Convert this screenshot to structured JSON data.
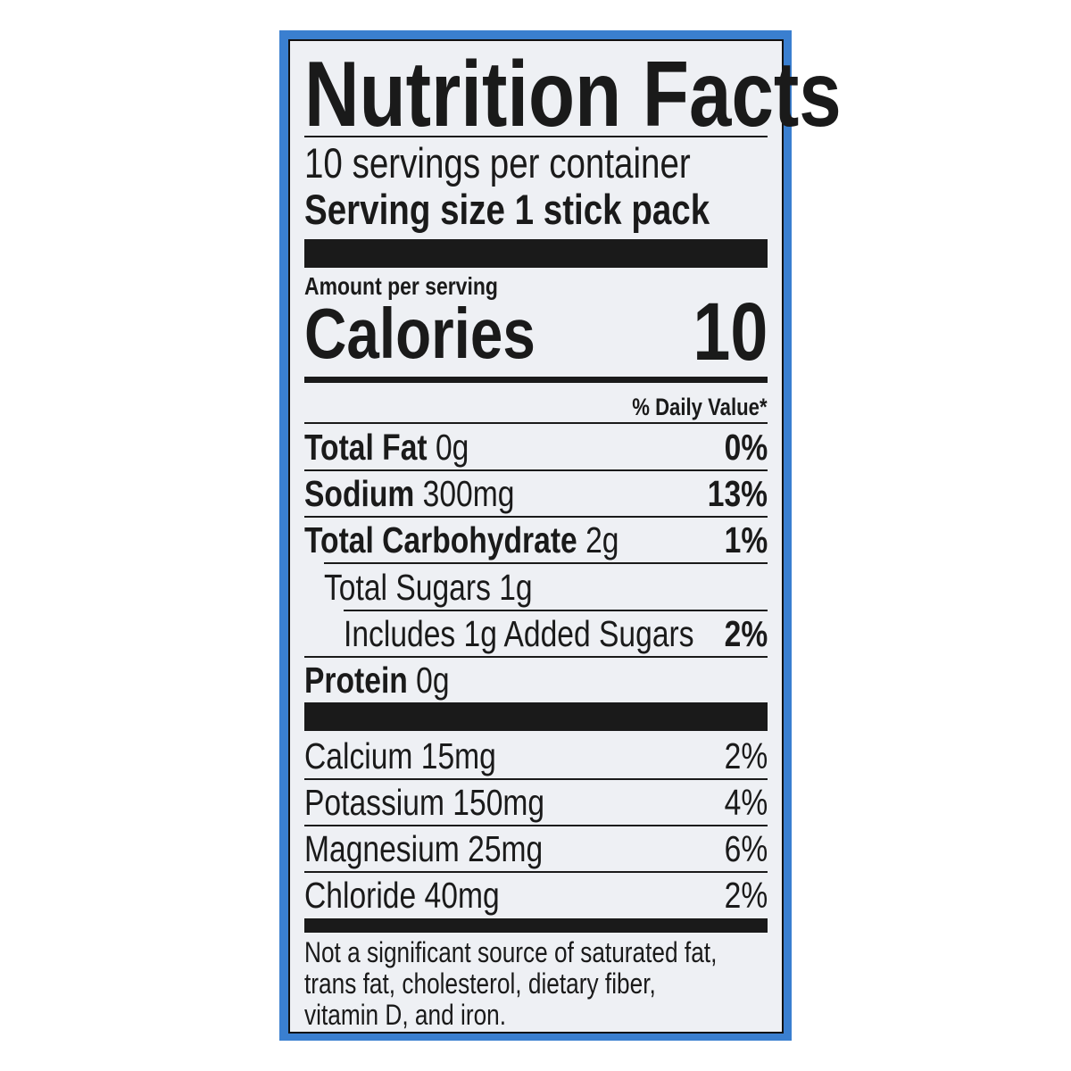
{
  "label": {
    "title": "Nutrition Facts",
    "servings_per_container": "10 servings per container",
    "serving_size_label": "Serving size",
    "serving_size_value": "1 stick pack",
    "amount_per_serving": "Amount per serving",
    "calories_label": "Calories",
    "calories_value": "10",
    "daily_value_header": "% Daily Value*",
    "nutrients": [
      {
        "name": "Total Fat",
        "amount": "0g",
        "dv": "0%"
      },
      {
        "name": "Sodium",
        "amount": "300mg",
        "dv": "13%"
      },
      {
        "name": "Total Carbohydrate",
        "amount": "2g",
        "dv": "1%"
      },
      {
        "name": "Total Sugars 1g",
        "amount": "",
        "dv": ""
      },
      {
        "name": "Includes 1g Added Sugars",
        "amount": "",
        "dv": "2%"
      },
      {
        "name": "Protein",
        "amount": "0g",
        "dv": ""
      }
    ],
    "minerals": [
      {
        "name": "Calcium 15mg",
        "dv": "2%"
      },
      {
        "name": "Potassium 150mg",
        "dv": "4%"
      },
      {
        "name": "Magnesium 25mg",
        "dv": "6%"
      },
      {
        "name": "Chloride 40mg",
        "dv": "2%"
      }
    ],
    "footnote": [
      "Not a significant source of saturated fat,",
      "trans fat, cholesterol, dietary fiber,",
      "vitamin D, and iron."
    ]
  },
  "colors": {
    "package_blue": "#3a7fd0",
    "panel": "#eef0f4",
    "ink": "#1a1a1a"
  }
}
